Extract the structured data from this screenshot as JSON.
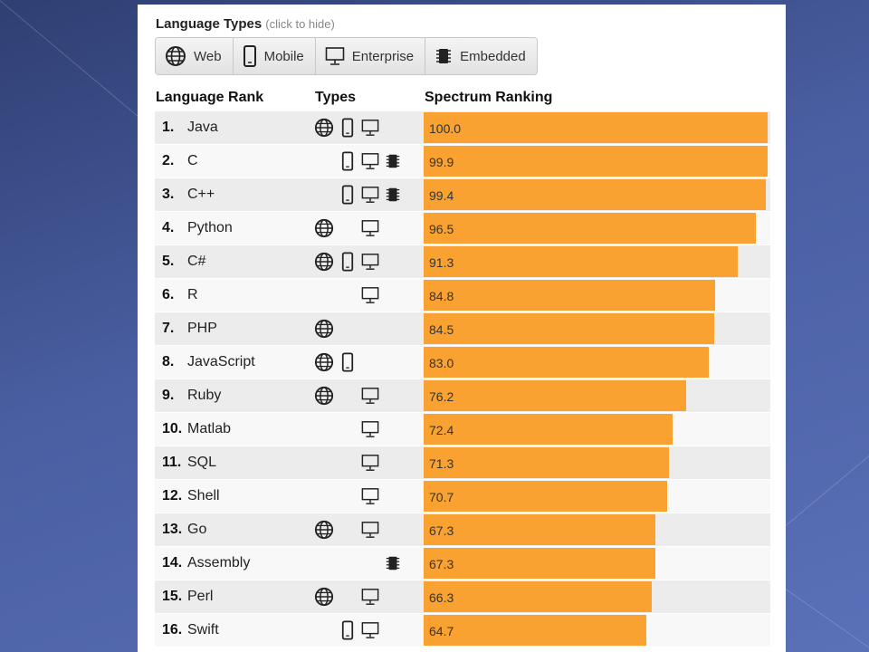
{
  "header": {
    "types_title": "Language Types",
    "types_hint": "(click to hide)",
    "type_buttons": [
      {
        "label": "Web",
        "icon": "globe-icon"
      },
      {
        "label": "Mobile",
        "icon": "phone-icon"
      },
      {
        "label": "Enterprise",
        "icon": "monitor-icon"
      },
      {
        "label": "Embedded",
        "icon": "chip-icon"
      }
    ],
    "col_rank": "Language Rank",
    "col_types": "Types",
    "col_spectrum": "Spectrum Ranking"
  },
  "colors": {
    "bar": "#f9a232"
  },
  "chart_data": {
    "type": "bar",
    "title": "",
    "xlim": [
      0,
      100
    ],
    "categories": [
      "Java",
      "C",
      "C++",
      "Python",
      "C#",
      "R",
      "PHP",
      "JavaScript",
      "Ruby",
      "Matlab",
      "SQL",
      "Shell",
      "Go",
      "Assembly",
      "Perl",
      "Swift"
    ],
    "values": [
      100.0,
      99.9,
      99.4,
      96.5,
      91.3,
      84.8,
      84.5,
      83.0,
      76.2,
      72.4,
      71.3,
      70.7,
      67.3,
      67.3,
      66.3,
      64.7
    ],
    "value_labels": [
      "100.0",
      "99.9",
      "99.4",
      "96.5",
      "91.3",
      "84.8",
      "84.5",
      "83.0",
      "76.2",
      "72.4",
      "71.3",
      "70.7",
      "67.3",
      "67.3",
      "66.3",
      "64.7"
    ],
    "ranks": [
      "1.",
      "2.",
      "3.",
      "4.",
      "5.",
      "6.",
      "7.",
      "8.",
      "9.",
      "10.",
      "11.",
      "12.",
      "13.",
      "14.",
      "15.",
      "16."
    ],
    "types": [
      [
        "web",
        "mobile",
        "enterprise"
      ],
      [
        "mobile",
        "enterprise",
        "embedded"
      ],
      [
        "mobile",
        "enterprise",
        "embedded"
      ],
      [
        "web",
        "enterprise"
      ],
      [
        "web",
        "mobile",
        "enterprise"
      ],
      [
        "enterprise"
      ],
      [
        "web"
      ],
      [
        "web",
        "mobile"
      ],
      [
        "web",
        "enterprise"
      ],
      [
        "enterprise"
      ],
      [
        "enterprise"
      ],
      [
        "enterprise"
      ],
      [
        "web",
        "enterprise"
      ],
      [
        "embedded"
      ],
      [
        "web",
        "enterprise"
      ],
      [
        "mobile",
        "enterprise"
      ]
    ]
  }
}
